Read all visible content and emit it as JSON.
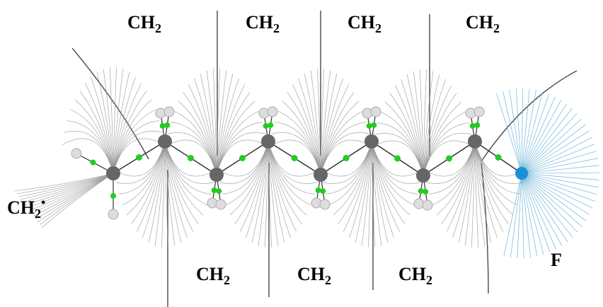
{
  "labels": [
    {
      "text": "CH",
      "sub": "2"
    },
    {
      "text": "CH",
      "sub": "2"
    },
    {
      "text": "CH",
      "sub": "2"
    },
    {
      "text": "CH",
      "sub": "2"
    },
    {
      "text": "CH",
      "sub": "2"
    },
    {
      "text": "CH",
      "sub": "2"
    },
    {
      "text": "CH",
      "sub": "2"
    },
    {
      "text": "CH",
      "sub": "2",
      "sup": "•"
    },
    {
      "text": "F"
    }
  ]
}
